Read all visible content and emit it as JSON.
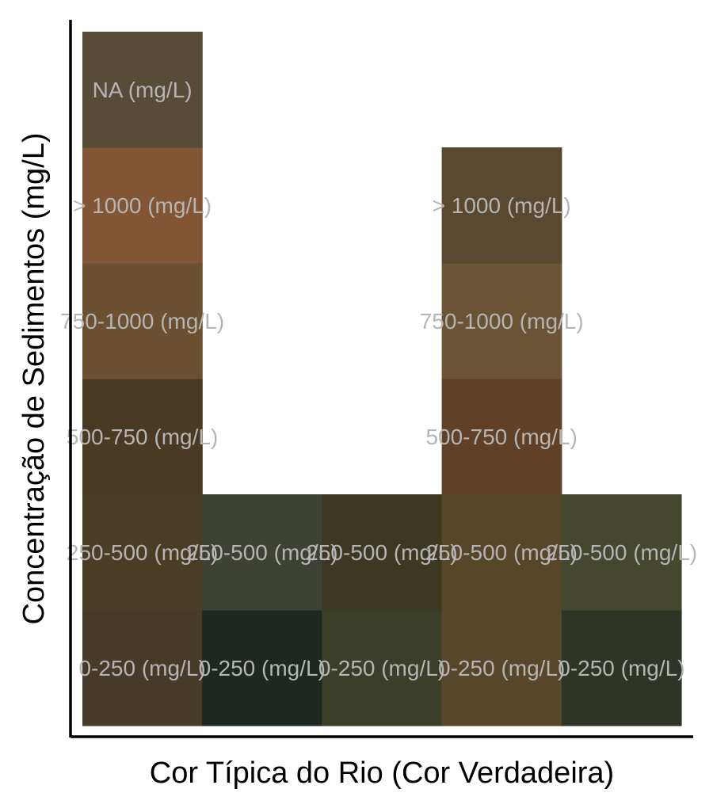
{
  "chart_data": {
    "type": "heatmap",
    "xlabel": "Cor Típica do Rio (Cor Verdadeira)",
    "ylabel": "Concentração de Sedimentos (mg/L)",
    "x_tick_labels": [],
    "columns": 5,
    "rows": [
      {
        "key": "0-250",
        "label": "0-250 (mg/L)"
      },
      {
        "key": "250-500",
        "label": "250-500 (mg/L)"
      },
      {
        "key": "500-750",
        "label": "500-750 (mg/L)"
      },
      {
        "key": "750-1000",
        "label": "750-1000 (mg/L)"
      },
      {
        "key": ">1000",
        "label": "> 1000 (mg/L)"
      },
      {
        "key": "NA",
        "label": "NA (mg/L)"
      }
    ],
    "cells": [
      {
        "col": 1,
        "row": 0,
        "label": "0-250 (mg/L)",
        "color": "#463b28"
      },
      {
        "col": 1,
        "row": 1,
        "label": "250-500 (mg/L)",
        "color": "#4a3d25"
      },
      {
        "col": 1,
        "row": 2,
        "label": "500-750 (mg/L)",
        "color": "#4a3a24"
      },
      {
        "col": 1,
        "row": 3,
        "label": "750-1000 (mg/L)",
        "color": "#6b5132"
      },
      {
        "col": 1,
        "row": 4,
        "label": "> 1000 (mg/L)",
        "color": "#825635"
      },
      {
        "col": 1,
        "row": 5,
        "label": "NA (mg/L)",
        "color": "#574c38"
      },
      {
        "col": 2,
        "row": 0,
        "label": "0-250 (mg/L)",
        "color": "#1f2820"
      },
      {
        "col": 2,
        "row": 1,
        "label": "250-500 (mg/L)",
        "color": "#3d4235"
      },
      {
        "col": 3,
        "row": 0,
        "label": "0-250 (mg/L)",
        "color": "#3b3f2a"
      },
      {
        "col": 3,
        "row": 1,
        "label": "250-500 (mg/L)",
        "color": "#3d3822"
      },
      {
        "col": 4,
        "row": 0,
        "label": "0-250 (mg/L)",
        "color": "#58462b"
      },
      {
        "col": 4,
        "row": 1,
        "label": "250-500 (mg/L)",
        "color": "#584629"
      },
      {
        "col": 4,
        "row": 2,
        "label": "500-750 (mg/L)",
        "color": "#604026"
      },
      {
        "col": 4,
        "row": 3,
        "label": "750-1000 (mg/L)",
        "color": "#6a5435"
      },
      {
        "col": 4,
        "row": 4,
        "label": "> 1000 (mg/L)",
        "color": "#5a4830"
      },
      {
        "col": 5,
        "row": 0,
        "label": "0-250 (mg/L)",
        "color": "#2e3426"
      },
      {
        "col": 5,
        "row": 1,
        "label": "250-500 (mg/L)",
        "color": "#45472f"
      }
    ],
    "legend": "none",
    "grid": false
  }
}
